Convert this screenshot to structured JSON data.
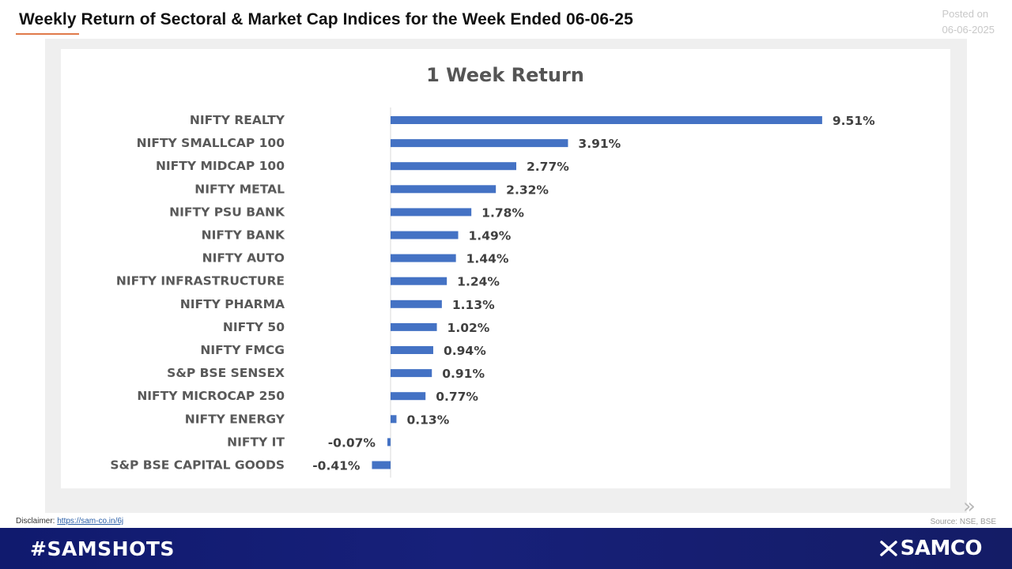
{
  "header": {
    "title": "Weekly Return of Sectoral & Market Cap Indices for the Week Ended 06-06-25",
    "posted_label": "Posted on",
    "posted_date": "06-06-2025"
  },
  "chart_data": {
    "type": "bar",
    "orientation": "horizontal",
    "title": "1 Week Return",
    "xlabel": "",
    "ylabel": "",
    "grid": false,
    "legend": "none",
    "bar_color": "#4472c4",
    "xlim": [
      -0.45,
      10.0
    ],
    "categories": [
      "NIFTY REALTY",
      "NIFTY SMALLCAP 100",
      "NIFTY MIDCAP 100",
      "NIFTY METAL",
      "NIFTY PSU BANK",
      "NIFTY BANK",
      "NIFTY AUTO",
      "NIFTY INFRASTRUCTURE",
      "NIFTY PHARMA",
      "NIFTY 50",
      "NIFTY FMCG",
      "S&P BSE SENSEX",
      "NIFTY MICROCAP 250",
      "NIFTY ENERGY",
      "NIFTY IT",
      "S&P BSE CAPITAL GOODS"
    ],
    "values": [
      9.51,
      3.91,
      2.77,
      2.32,
      1.78,
      1.49,
      1.44,
      1.24,
      1.13,
      1.02,
      0.94,
      0.91,
      0.77,
      0.13,
      -0.07,
      -0.41
    ],
    "data_labels": [
      "9.51%",
      "3.91%",
      "2.77%",
      "2.32%",
      "1.78%",
      "1.49%",
      "1.44%",
      "1.24%",
      "1.13%",
      "1.02%",
      "0.94%",
      "0.91%",
      "0.77%",
      "0.13%",
      "-0.07%",
      "-0.41%"
    ]
  },
  "footer": {
    "disclaimer_label": "Disclaimer:",
    "disclaimer_link": "https://sam-co.in/6j",
    "source": "Source: NSE, BSE",
    "hashtag": "#SAMSHOTS",
    "brand": "SAMCO",
    "next_icon": "double-chevron-right-icon",
    "brand_icon": "samco-logo-icon"
  }
}
